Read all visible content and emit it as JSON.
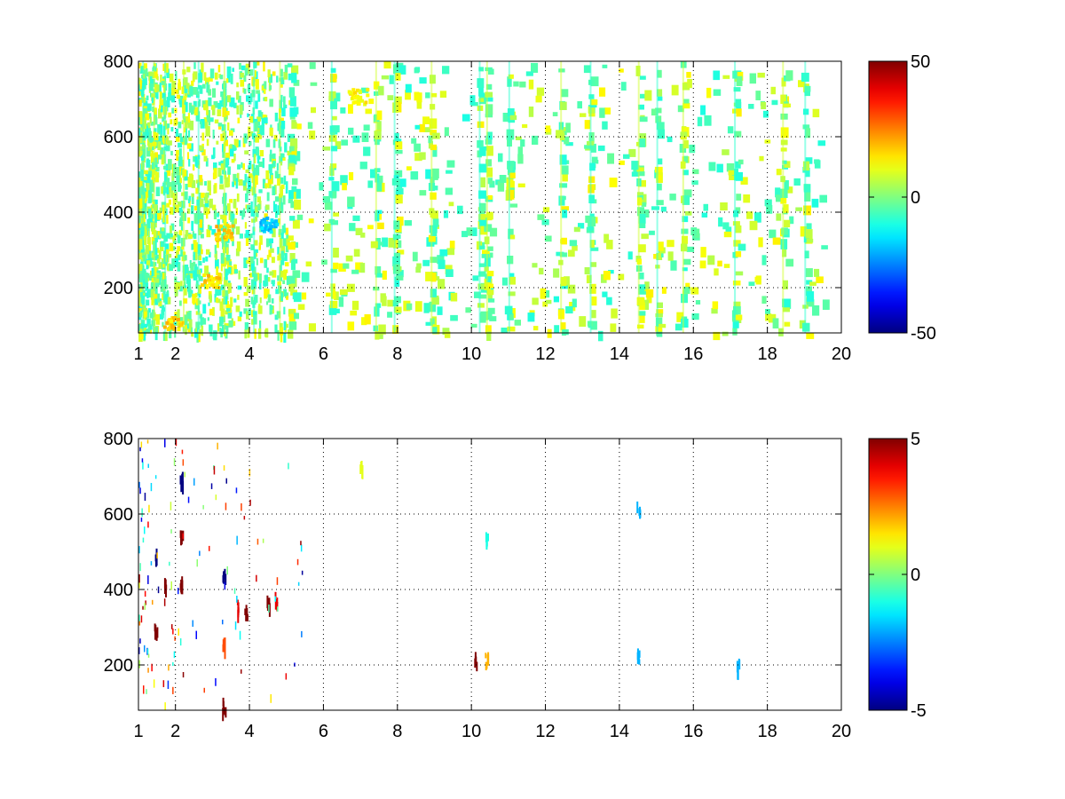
{
  "colormap": "jet",
  "colormap_stops": [
    "#00008f",
    "#0000ff",
    "#00ffff",
    "#ffff00",
    "#ff0000",
    "#800000"
  ],
  "background": "#ffffff",
  "chart_data": [
    {
      "type": "heatmap",
      "title": "",
      "xlabel": "",
      "ylabel": "",
      "xlim": [
        1,
        20
      ],
      "ylim": [
        80,
        800
      ],
      "x_ticks": [
        1,
        2,
        4,
        6,
        8,
        10,
        12,
        14,
        16,
        18,
        20
      ],
      "x_tick_labels": [
        "1",
        "2",
        "4",
        "6",
        "8",
        "10",
        "12",
        "14",
        "16",
        "18",
        "20"
      ],
      "y_ticks": [
        200,
        400,
        600,
        800
      ],
      "y_tick_labels": [
        "200",
        "400",
        "600",
        "800"
      ],
      "grid": true,
      "grid_style": "dotted",
      "colorbar": {
        "range": [
          -50,
          50
        ],
        "ticks": [
          50,
          0,
          -50
        ],
        "tick_labels": [
          "50",
          "0",
          "-50"
        ]
      },
      "description_of_values": "sparse field; most values near 0 (green to yellow), denser structure for x < 5, vertical streaks near x = 2.2, 3.3, 4.1, 6.2, 7.4, 10.2, 10.4, 14.5, 15.7, 17.1",
      "streaks_x": [
        1.1,
        1.4,
        1.7,
        2.2,
        2.6,
        3.3,
        4.1,
        4.8,
        6.2,
        7.4,
        7.9,
        8.9,
        10.2,
        10.4,
        11.0,
        12.4,
        13.2,
        14.5,
        15.0,
        15.7,
        17.1,
        18.4,
        19.0
      ],
      "features": [
        {
          "x": 3.3,
          "y": 350,
          "value": 20
        },
        {
          "x": 4.5,
          "y": 370,
          "value": -20
        },
        {
          "x": 6.9,
          "y": 710,
          "value": 15
        },
        {
          "x": 1.9,
          "y": 110,
          "value": 20
        },
        {
          "x": 2.9,
          "y": 220,
          "value": 20
        }
      ]
    },
    {
      "type": "heatmap",
      "title": "",
      "xlabel": "",
      "ylabel": "",
      "xlim": [
        1,
        20
      ],
      "ylim": [
        80,
        800
      ],
      "x_ticks": [
        1,
        2,
        4,
        6,
        8,
        10,
        12,
        14,
        16,
        18,
        20
      ],
      "x_tick_labels": [
        "1",
        "2",
        "4",
        "6",
        "8",
        "10",
        "12",
        "14",
        "16",
        "18",
        "20"
      ],
      "y_ticks": [
        200,
        400,
        600,
        800
      ],
      "y_tick_labels": [
        "200",
        "400",
        "600",
        "800"
      ],
      "grid": true,
      "grid_style": "dotted",
      "colorbar": {
        "range": [
          -5,
          5
        ],
        "ticks": [
          5,
          0,
          -5
        ],
        "tick_labels": [
          "5",
          "0",
          "-5"
        ]
      },
      "description_of_values": "very sparse field; strong values concentrated at x < 5, isolated points near x = 10.2, 10.4, 14.5, 17.2",
      "points": [
        {
          "x": 1.45,
          "y": 500,
          "value": -5
        },
        {
          "x": 1.45,
          "y": 300,
          "value": 5
        },
        {
          "x": 1.7,
          "y": 420,
          "value": 5
        },
        {
          "x": 2.15,
          "y": 700,
          "value": -5
        },
        {
          "x": 2.15,
          "y": 550,
          "value": 5
        },
        {
          "x": 2.15,
          "y": 420,
          "value": 5
        },
        {
          "x": 3.3,
          "y": 450,
          "value": -5
        },
        {
          "x": 3.3,
          "y": 260,
          "value": 3
        },
        {
          "x": 3.3,
          "y": 100,
          "value": 5
        },
        {
          "x": 3.7,
          "y": 360,
          "value": 4
        },
        {
          "x": 3.9,
          "y": 345,
          "value": 5
        },
        {
          "x": 4.5,
          "y": 370,
          "value": 5
        },
        {
          "x": 4.7,
          "y": 380,
          "value": 4
        },
        {
          "x": 10.1,
          "y": 220,
          "value": 5
        },
        {
          "x": 10.4,
          "y": 220,
          "value": 2
        },
        {
          "x": 10.4,
          "y": 540,
          "value": -1
        },
        {
          "x": 14.5,
          "y": 620,
          "value": -2
        },
        {
          "x": 14.5,
          "y": 230,
          "value": -2
        },
        {
          "x": 17.2,
          "y": 205,
          "value": -2
        },
        {
          "x": 7.0,
          "y": 730,
          "value": 1
        }
      ]
    }
  ]
}
